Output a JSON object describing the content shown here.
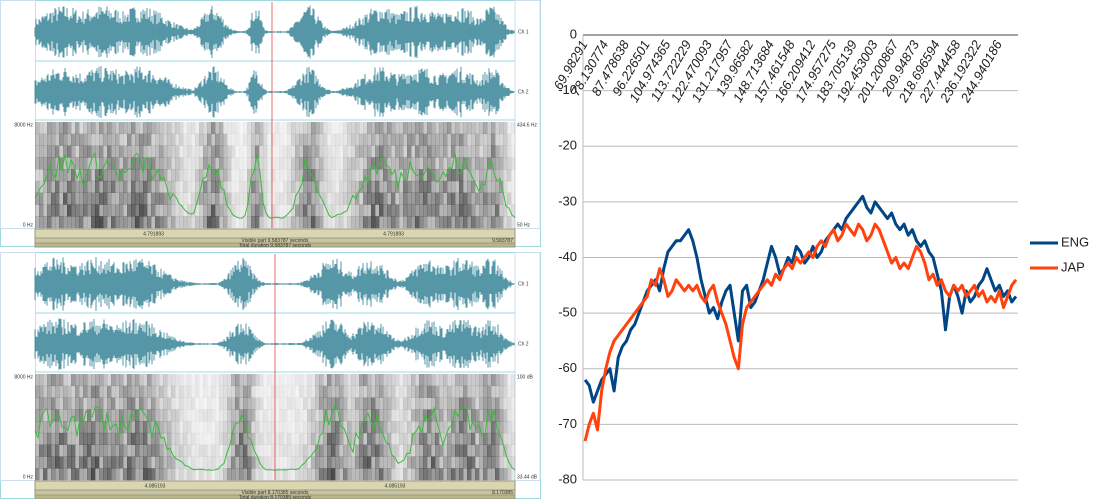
{
  "praat_windows": [
    {
      "ch1": "Ch 1",
      "ch2": "Ch 2",
      "freq_top": "8000 Hz",
      "freq_bottom": "0 Hz",
      "right_top": "434.6 Hz",
      "right_bottom": "50 Hz",
      "cursor_time": "4.791893",
      "visible": "Visible part 9.583787 seconds",
      "visible_end": "9.583787",
      "total": "Total duration 9.583787 seconds"
    },
    {
      "ch1": "Ch 1",
      "ch2": "Ch 2",
      "freq_top": "8000 Hz",
      "freq_bottom": "0 Hz",
      "right_top": "100 dB",
      "right_bottom": "33.44 dB",
      "cursor_time": "4.085193",
      "visible": "Visible part 8.170385 seconds",
      "visible_end": "8.170385",
      "total": "Total duration 8.170385 seconds"
    }
  ],
  "chart_data": {
    "type": "line",
    "categories": [
      "69.98291",
      null,
      null,
      null,
      null,
      "78.130774",
      null,
      null,
      null,
      null,
      "87.478638",
      null,
      null,
      null,
      null,
      "96.226501",
      null,
      null,
      null,
      null,
      "104.974365",
      null,
      null,
      null,
      null,
      "113.722229",
      null,
      null,
      null,
      null,
      "122.470093",
      null,
      null,
      null,
      null,
      "131.217957",
      null,
      null,
      null,
      null,
      "139.96582",
      null,
      null,
      null,
      null,
      "148.713684",
      null,
      null,
      null,
      null,
      "157.461548",
      null,
      null,
      null,
      null,
      "166.209412",
      null,
      null,
      null,
      null,
      "174.957275",
      null,
      null,
      null,
      null,
      "183.705139",
      null,
      null,
      null,
      null,
      "192.453003",
      null,
      null,
      null,
      null,
      "201.200867",
      null,
      null,
      null,
      null,
      "209.94873",
      null,
      null,
      null,
      null,
      "218.696594",
      null,
      null,
      null,
      null,
      "227.444458",
      null,
      null,
      null,
      null,
      "236.192322",
      null,
      null,
      null,
      null,
      "244.940186",
      null,
      null,
      null,
      null
    ],
    "series": [
      {
        "name": "ENG",
        "color": "#004586",
        "values": [
          -62,
          -63,
          -66,
          -64,
          -62,
          -61,
          -60,
          -64,
          -58,
          -56,
          -55,
          -53,
          -52,
          -50,
          -48,
          -46,
          -45,
          -44,
          -46,
          -42,
          -39,
          -38,
          -37,
          -37,
          -36,
          -35,
          -37,
          -40,
          -44,
          -47,
          -50,
          -49,
          -51,
          -48,
          -46,
          -45,
          -50,
          -55,
          -46,
          -45,
          -49,
          -48,
          -46,
          -44,
          -41,
          -38,
          -40,
          -43,
          -42,
          -40,
          -41,
          -38,
          -39,
          -41,
          -40,
          -38,
          -40,
          -39,
          -37,
          -36,
          -35,
          -34,
          -35,
          -33,
          -32,
          -31,
          -30,
          -29,
          -31,
          -32,
          -30,
          -31,
          -32,
          -33,
          -32,
          -34,
          -35,
          -34,
          -36,
          -35,
          -37,
          -38,
          -37,
          -39,
          -40,
          -43,
          -46,
          -53,
          -47,
          -45,
          -47,
          -50,
          -46,
          -48,
          -47,
          -45,
          -44,
          -42,
          -44,
          -46,
          -45,
          -47,
          -46,
          -48,
          -47
        ]
      },
      {
        "name": "JAP",
        "color": "#ff420e",
        "values": [
          -73,
          -70,
          -68,
          -71,
          -64,
          -60,
          -57,
          -55,
          -54,
          -53,
          -52,
          -51,
          -50,
          -49,
          -48,
          -47,
          -44,
          -45,
          -42,
          -44,
          -47,
          -46,
          -44,
          -45,
          -46,
          -45,
          -46,
          -45,
          -47,
          -48,
          -46,
          -45,
          -48,
          -50,
          -52,
          -55,
          -58,
          -60,
          -52,
          -49,
          -48,
          -47,
          -46,
          -45,
          -44,
          -45,
          -43,
          -44,
          -42,
          -41,
          -42,
          -40,
          -41,
          -40,
          -39,
          -40,
          -38,
          -37,
          -38,
          -36,
          -35,
          -37,
          -36,
          -34,
          -35,
          -36,
          -34,
          -35,
          -37,
          -36,
          -34,
          -35,
          -37,
          -39,
          -41,
          -40,
          -42,
          -41,
          -42,
          -40,
          -38,
          -39,
          -41,
          -44,
          -43,
          -45,
          -44,
          -46,
          -47,
          -45,
          -46,
          -45,
          -47,
          -46,
          -45,
          -47,
          -46,
          -48,
          -47,
          -48,
          -46,
          -49,
          -47,
          -45,
          -44
        ]
      }
    ],
    "ylim": [
      -80,
      0
    ],
    "yticks": [
      -80,
      -70,
      -60,
      -50,
      -40,
      -30,
      -20,
      -10,
      0
    ],
    "grid": true,
    "legend": "right"
  }
}
